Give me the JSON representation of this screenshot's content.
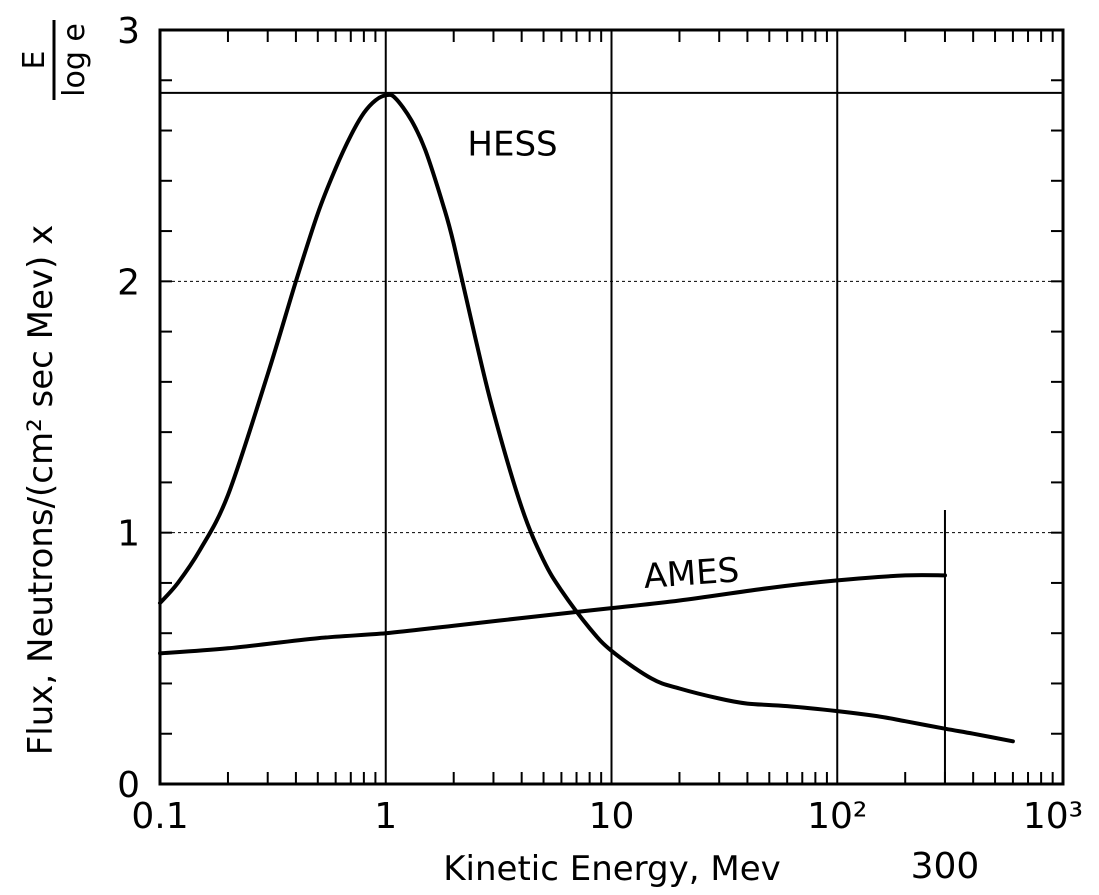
{
  "chart_data": {
    "type": "line",
    "title": "",
    "xlabel": "Kinetic Energy, Mev",
    "ylabel_prefix": "Flux, Neutrons/(cm² sec Mev) x",
    "ylabel_frac_num": "E",
    "ylabel_frac_den": "log e",
    "x_scale": "log",
    "xlim": [
      0.1,
      1000
    ],
    "ylim": [
      0,
      3
    ],
    "x_ticks": [
      {
        "value": 0.1,
        "label": "0.1"
      },
      {
        "value": 1,
        "label": "1"
      },
      {
        "value": 10,
        "label": "10"
      },
      {
        "value": 100,
        "label": "10²"
      },
      {
        "value": 1000,
        "label": "10³"
      }
    ],
    "x_extra_label": {
      "value": 300,
      "label": "300"
    },
    "y_ticks": [
      {
        "value": 0,
        "label": "0"
      },
      {
        "value": 1,
        "label": "1"
      },
      {
        "value": 2,
        "label": "2"
      },
      {
        "value": 3,
        "label": "3"
      }
    ],
    "extra_hlines": [
      2.75
    ],
    "grid": true,
    "series": [
      {
        "name": "HESS",
        "x": [
          0.1,
          0.12,
          0.15,
          0.2,
          0.3,
          0.4,
          0.5,
          0.6,
          0.7,
          0.8,
          0.9,
          1.0,
          1.1,
          1.3,
          1.5,
          1.8,
          2.0,
          2.5,
          3.0,
          4.0,
          5.0,
          6.0,
          8.0,
          10,
          15,
          20,
          30,
          40,
          60,
          100,
          150,
          200,
          300,
          400,
          600
        ],
        "y": [
          0.72,
          0.8,
          0.93,
          1.15,
          1.63,
          2.0,
          2.27,
          2.45,
          2.58,
          2.67,
          2.72,
          2.74,
          2.73,
          2.64,
          2.52,
          2.3,
          2.15,
          1.77,
          1.48,
          1.1,
          0.89,
          0.77,
          0.62,
          0.53,
          0.42,
          0.38,
          0.34,
          0.32,
          0.31,
          0.29,
          0.27,
          0.25,
          0.22,
          0.2,
          0.17
        ]
      },
      {
        "name": "AMES",
        "x": [
          0.1,
          0.2,
          0.5,
          1,
          2,
          5,
          10,
          20,
          50,
          100,
          200,
          300
        ],
        "y": [
          0.52,
          0.54,
          0.58,
          0.6,
          0.63,
          0.67,
          0.7,
          0.73,
          0.78,
          0.81,
          0.83,
          0.83
        ]
      }
    ],
    "annotations": [
      {
        "text": "HESS",
        "x": 2.3,
        "y": 2.5
      },
      {
        "text": "AMES",
        "x": 14,
        "y": 0.78
      }
    ]
  }
}
